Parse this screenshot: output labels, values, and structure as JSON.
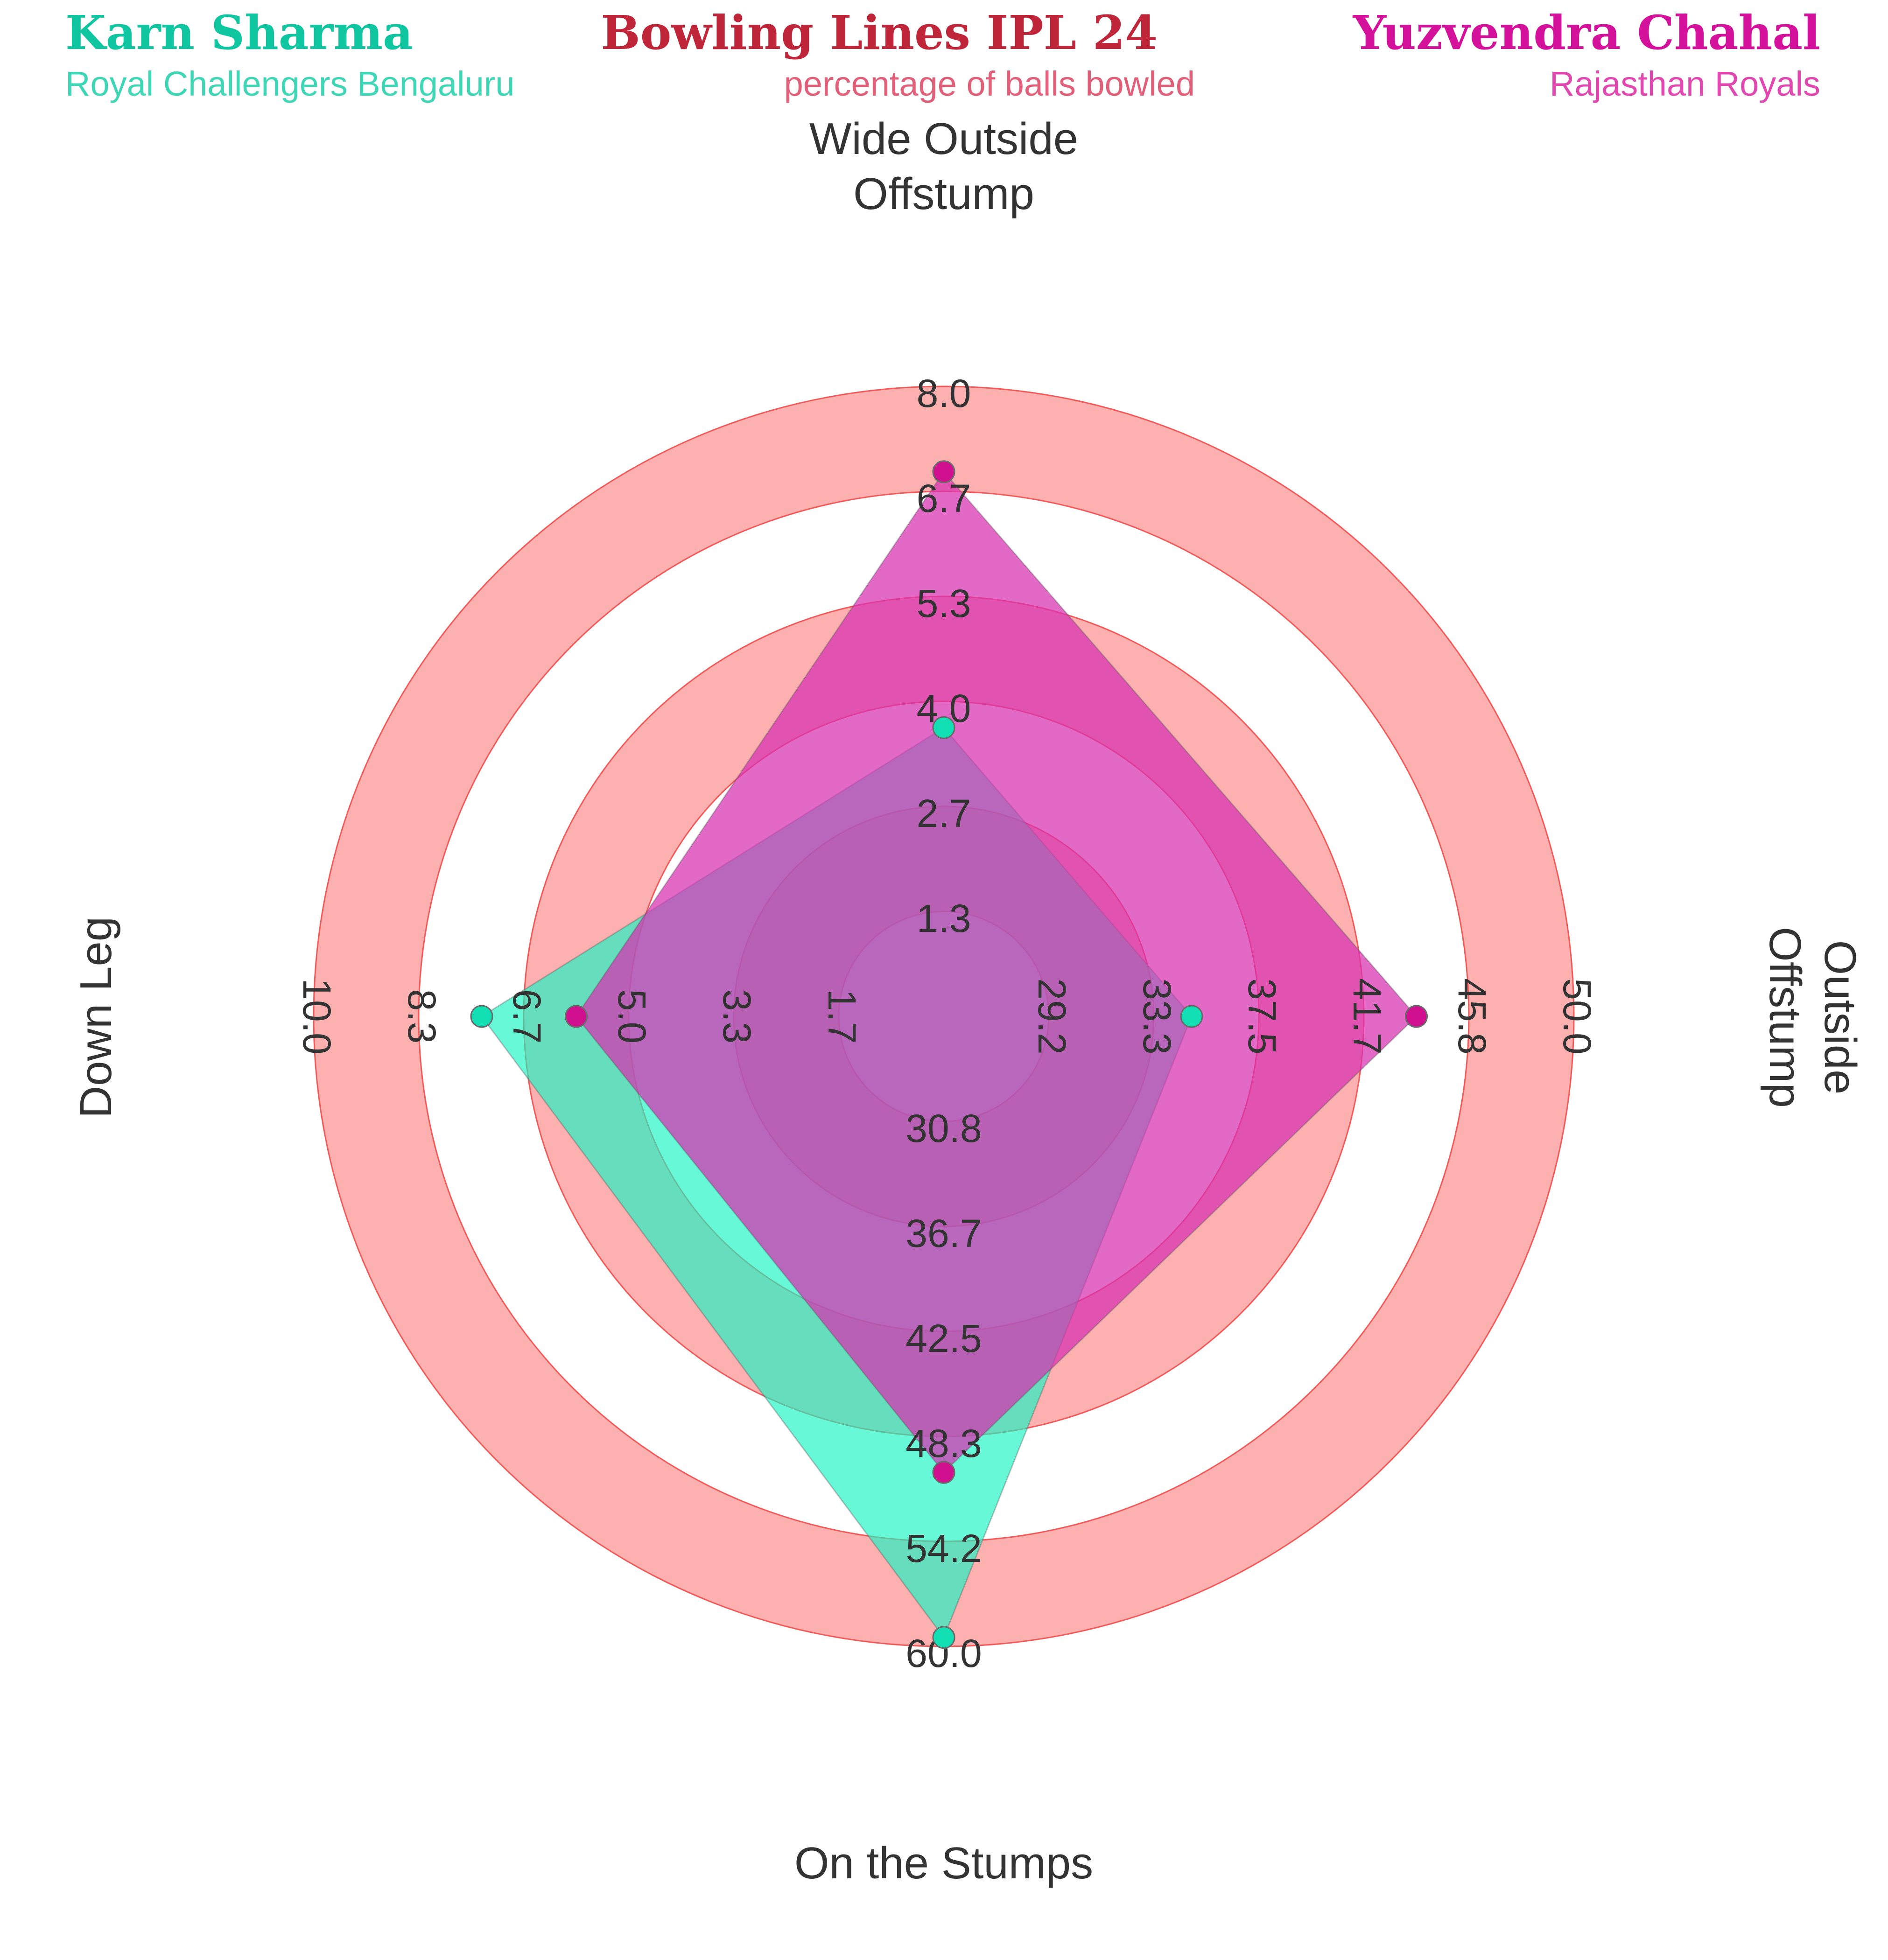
{
  "header": {
    "title": "Bowling Lines IPL 24",
    "subtitle": "percentage of balls bowled",
    "left_player": "Karn Sharma",
    "left_team": "Royal Challengers Bengaluru",
    "right_player": "Yuzvendra Chahal",
    "right_team": "Rajasthan Royals"
  },
  "colors": {
    "title": "#c0263a",
    "subtitle": "#e0607a",
    "left_player": "#10c6a0",
    "left_team": "#3fd6b6",
    "right_player": "#d3119a",
    "right_team": "#e048b0",
    "ring_band": "#fcb0b0",
    "ring_line": "#f25a5a",
    "series_a": "#19f5c3",
    "series_a_marker": "#12e0b4",
    "series_b": "#d82fb2",
    "series_b_marker": "#d0108e"
  },
  "chart_data": {
    "type": "radar",
    "title": "Bowling Lines IPL 24",
    "subtitle": "percentage of balls bowled",
    "axes": [
      {
        "label": "Wide Outside Offstump",
        "min": 0,
        "max": 8.0,
        "ticks": [
          "1.3",
          "2.7",
          "4.0",
          "5.3",
          "6.7",
          "8.0"
        ]
      },
      {
        "label": "Outside Offstump",
        "min": 25.0,
        "max": 50.0,
        "ticks": [
          "29.2",
          "33.3",
          "37.5",
          "41.7",
          "45.8",
          "50.0"
        ]
      },
      {
        "label": "On the Stumps",
        "min": 25.0,
        "max": 60.0,
        "ticks": [
          "30.8",
          "36.7",
          "42.5",
          "48.3",
          "54.2",
          "60.0"
        ]
      },
      {
        "label": "Down Leg",
        "min": 0,
        "max": 10.0,
        "ticks": [
          "1.7",
          "3.3",
          "5.0",
          "6.7",
          "8.3",
          "10.0"
        ]
      }
    ],
    "series": [
      {
        "name": "Karn Sharma",
        "values": [
          2.8,
          31.8,
          59.4,
          6.8
        ]
      },
      {
        "name": "Yuzvendra Chahal",
        "values": [
          6.7,
          42.5,
          48.4,
          5.0
        ]
      }
    ]
  }
}
